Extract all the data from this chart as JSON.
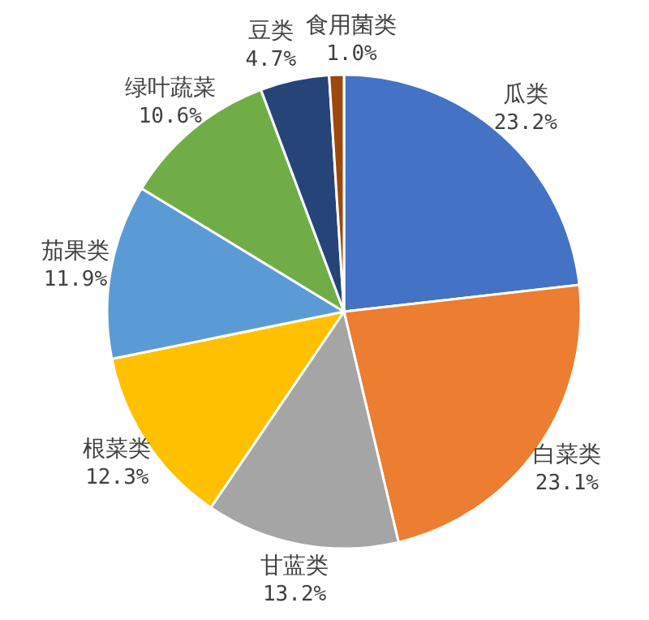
{
  "chart_data": {
    "type": "pie",
    "categories": [
      "瓜类",
      "白菜类",
      "甘蓝类",
      "根菜类",
      "茄果类",
      "绿叶蔬菜",
      "豆类",
      "食用菌类"
    ],
    "values": [
      23.2,
      23.1,
      13.2,
      12.3,
      11.9,
      10.6,
      4.7,
      1.0
    ],
    "colors": [
      "#4472c4",
      "#ed7d31",
      "#a5a5a5",
      "#ffc000",
      "#5b9bd5",
      "#70ad47",
      "#264478",
      "#9e480e"
    ],
    "value_labels": [
      "23.2%",
      "23.1%",
      "13.2%",
      "12.3%",
      "11.9%",
      "10.6%",
      "4.7%",
      "1.0%"
    ]
  }
}
